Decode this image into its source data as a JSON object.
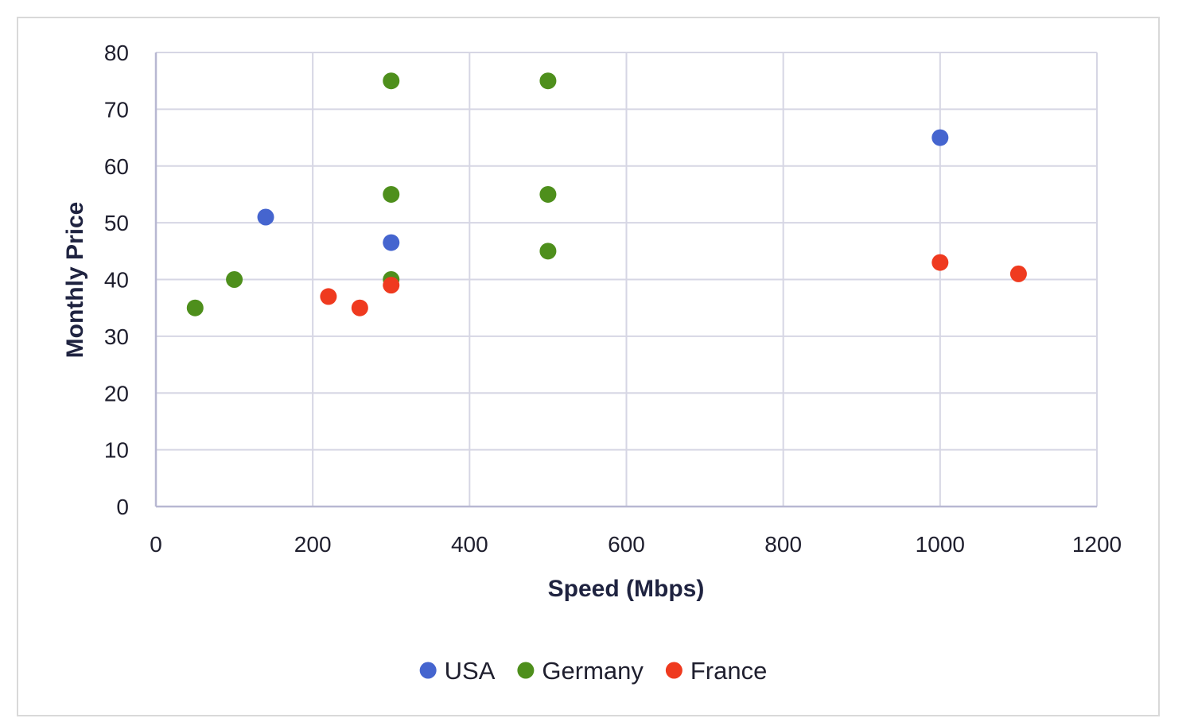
{
  "chart_data": {
    "type": "scatter",
    "title": "",
    "xlabel": "Speed (Mbps)",
    "ylabel": "Monthly Price",
    "xlim": [
      0,
      1200
    ],
    "ylim": [
      0,
      80
    ],
    "x_ticks": [
      0,
      200,
      400,
      600,
      800,
      1000,
      1200
    ],
    "y_ticks": [
      0,
      10,
      20,
      30,
      40,
      50,
      60,
      70,
      80
    ],
    "grid": true,
    "legend_position": "bottom",
    "series": [
      {
        "name": "USA",
        "color": "#4565cf",
        "points": [
          {
            "x": 140,
            "y": 51
          },
          {
            "x": 300,
            "y": 46.5
          },
          {
            "x": 1000,
            "y": 65
          }
        ]
      },
      {
        "name": "Germany",
        "color": "#4e8f1c",
        "points": [
          {
            "x": 50,
            "y": 35
          },
          {
            "x": 100,
            "y": 40
          },
          {
            "x": 300,
            "y": 75
          },
          {
            "x": 300,
            "y": 55
          },
          {
            "x": 300,
            "y": 40
          },
          {
            "x": 500,
            "y": 75
          },
          {
            "x": 500,
            "y": 55
          },
          {
            "x": 500,
            "y": 45
          }
        ]
      },
      {
        "name": "France",
        "color": "#ef3a1f",
        "points": [
          {
            "x": 220,
            "y": 37
          },
          {
            "x": 260,
            "y": 35
          },
          {
            "x": 300,
            "y": 39
          },
          {
            "x": 1000,
            "y": 43
          },
          {
            "x": 1100,
            "y": 41
          }
        ]
      }
    ]
  }
}
